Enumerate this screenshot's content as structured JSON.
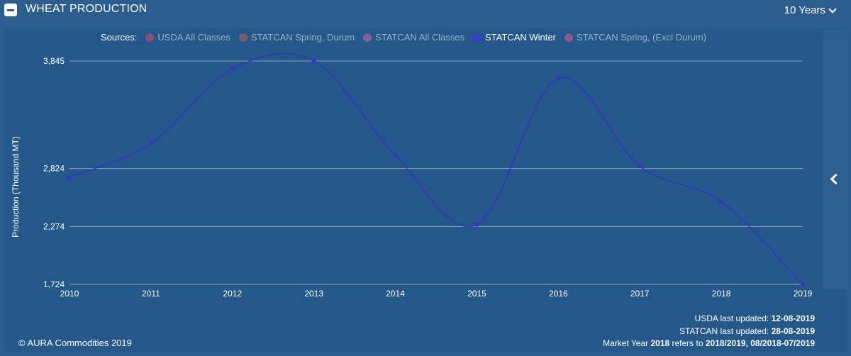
{
  "header": {
    "title": "WHEAT PRODUCTION",
    "range": "10 Years"
  },
  "legend": {
    "label": "Sources:",
    "items": [
      {
        "label": "USDA All Classes",
        "color": "#8a4d7c",
        "active": false
      },
      {
        "label": "STATCAN Spring, Durum",
        "color": "#7a5a6a",
        "active": false
      },
      {
        "label": "STATCAN All Classes",
        "color": "#8a5a9a",
        "active": false
      },
      {
        "label": "STATCAN Winter",
        "color": "#3a3dc8",
        "active": true
      },
      {
        "label": "STATCAN Spring, (Excl Durum)",
        "color": "#8a5a84",
        "active": false
      }
    ]
  },
  "chart_data": {
    "type": "line",
    "ylabel": "Production (Thousand MT)",
    "xlabel": "",
    "x": [
      "2010",
      "2011",
      "2012",
      "2013",
      "2014",
      "2015",
      "2016",
      "2017",
      "2018",
      "2019"
    ],
    "yticks": [
      1724,
      2274,
      2824,
      3845
    ],
    "ytick_labels": [
      "1,724",
      "2,274",
      "2,824",
      "3,845"
    ],
    "ylim": [
      1724,
      3845
    ],
    "series": [
      {
        "name": "STATCAN Winter",
        "color": "#3535c0",
        "values": [
          2740,
          3065,
          3770,
          3845,
          2950,
          2290,
          3680,
          2845,
          2510,
          1724
        ]
      }
    ],
    "grid": true
  },
  "footer": {
    "copyright": "© AURA Commodities 2019",
    "usda_prefix": "USDA last updated: ",
    "usda_date": "12-08-2019",
    "statcan_prefix": "STATCAN last updated: ",
    "statcan_date": "28-08-2019",
    "my_prefix": "Market Year ",
    "my_year": "2018",
    "my_mid": " refers to ",
    "my_range": "2018/2019, 08/2018-07/2019"
  }
}
